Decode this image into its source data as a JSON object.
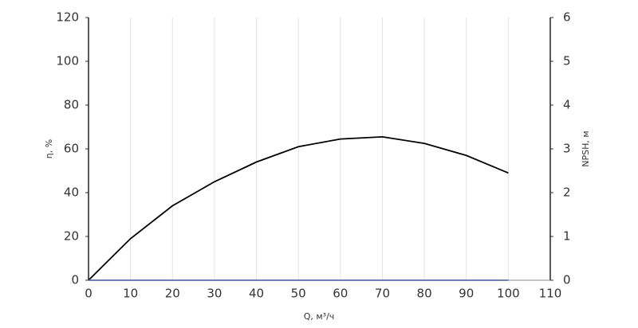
{
  "chart_data": {
    "type": "line",
    "x_label": "Q, м³/ч",
    "y_label": "η, %",
    "y2_label": "NPSH, м",
    "x": [
      0,
      10,
      20,
      30,
      40,
      50,
      60,
      70,
      80,
      90,
      100
    ],
    "series": [
      {
        "color": "#000000",
        "values": [
          0,
          19,
          34,
          45,
          54,
          61,
          64.5,
          65.5,
          62.5,
          57,
          49
        ]
      },
      {
        "color": "#5b6fa8",
        "axis": "y2",
        "values": [
          0,
          0,
          0,
          0,
          0,
          0,
          0,
          0,
          0,
          0,
          0
        ]
      }
    ],
    "xlim": [
      0,
      110
    ],
    "xticks": [
      0,
      10,
      20,
      30,
      40,
      50,
      60,
      70,
      80,
      90,
      100,
      110
    ],
    "ylim": [
      0,
      120
    ],
    "yticks": [
      0,
      20,
      40,
      60,
      80,
      100,
      120
    ],
    "y2lim": [
      0,
      6
    ],
    "y2ticks": [
      0,
      1,
      2,
      3,
      4,
      5,
      6
    ],
    "grid": true
  }
}
